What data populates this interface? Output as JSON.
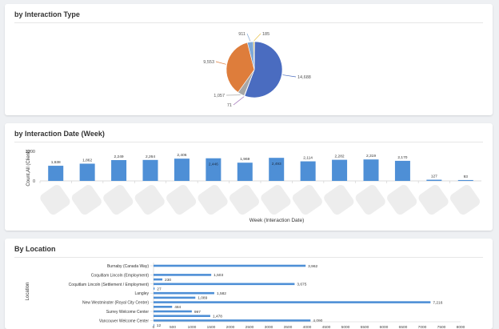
{
  "colors": {
    "bar": "#4e8fd6",
    "pie_blue": "#4a6cc0",
    "pie_orange": "#de7d3b",
    "pie_purple": "#9b6bb5",
    "pie_gray": "#a7a7a7",
    "pie_yellow": "#e8c24a",
    "pie_lightblue": "#7ea8d8"
  },
  "cards": {
    "interaction_type": {
      "title": "by Interaction Type"
    },
    "interaction_week": {
      "title": "by Interaction Date (Week)"
    },
    "location": {
      "title": "By Location"
    }
  },
  "chart_data": [
    {
      "type": "pie",
      "title": "by Interaction Type",
      "slices": [
        {
          "value": 14688,
          "label": "14,688",
          "color": "#4a6cc0"
        },
        {
          "value": 71,
          "label": "71",
          "color": "#9b6bb5"
        },
        {
          "value": 1057,
          "label": "1,057",
          "color": "#a7a7a7"
        },
        {
          "value": 9553,
          "label": "9,553",
          "color": "#de7d3b"
        },
        {
          "value": 911,
          "label": "911",
          "color": "#7ea8d8"
        },
        {
          "value": 185,
          "label": "185",
          "color": "#e8c24a"
        }
      ]
    },
    {
      "type": "bar",
      "title": "by Interaction Date (Week)",
      "xlabel": "Week (Interaction Date)",
      "ylabel": "Count,All (Client)",
      "yticks": [
        "3200",
        "0"
      ],
      "ylim": [
        0,
        3200
      ],
      "values": [
        1638,
        1862,
        2249,
        2264,
        2406,
        2446,
        1969,
        2493,
        2114,
        2282,
        2319,
        2170,
        127,
        93
      ],
      "labels": [
        "1,638",
        "1,862",
        "2,249",
        "2,264",
        "2,406",
        "2,446",
        "1,969",
        "2,493",
        "2,114",
        "2,282",
        "2,319",
        "2,170",
        "127",
        "93"
      ]
    },
    {
      "type": "bar",
      "orientation": "horizontal",
      "title": "By Location",
      "ylabel": "Location",
      "xlim": [
        0,
        8000
      ],
      "xticks": [
        "0",
        "500",
        "1000",
        "1500",
        "2000",
        "2500",
        "3000",
        "3500",
        "4000",
        "4500",
        "5000",
        "5500",
        "6000",
        "6500",
        "7000",
        "7500",
        "8000"
      ],
      "categories": [
        "Burnaby (Canada Way)",
        "",
        "Coquitlam Lincoln (Employment)",
        "",
        "Coquitlam Lincoln (Settlement / Employment)",
        "",
        "Langley",
        "",
        "New Westminster (Royal City Centre)",
        "",
        "Surrey Welcome Center",
        "",
        "Vancouver Welcome Center",
        ""
      ],
      "values": [
        3962,
        1503,
        230,
        3675,
        27,
        1582,
        1089,
        7216,
        484,
        997,
        1478,
        4090,
        12
      ],
      "labels": [
        "3,962",
        "1,503",
        "230",
        "3,675",
        "27",
        "1,582",
        "1,089",
        "7,216",
        "484",
        "997",
        "1,478",
        "4,090",
        "12"
      ],
      "row_index": [
        0,
        2,
        3,
        4,
        5,
        6,
        7,
        8,
        9,
        10,
        11,
        12,
        13
      ]
    }
  ]
}
